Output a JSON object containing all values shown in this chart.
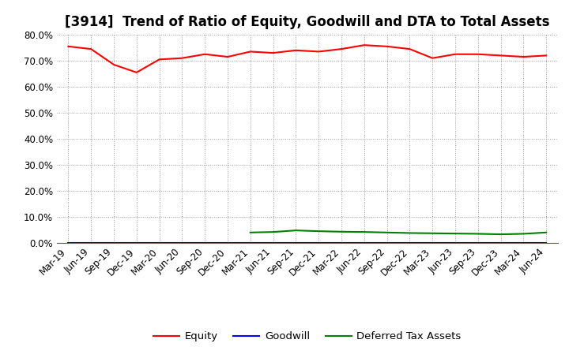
{
  "title": "[3914]  Trend of Ratio of Equity, Goodwill and DTA to Total Assets",
  "x_labels": [
    "Mar-19",
    "Jun-19",
    "Sep-19",
    "Dec-19",
    "Mar-20",
    "Jun-20",
    "Sep-20",
    "Dec-20",
    "Mar-21",
    "Jun-21",
    "Sep-21",
    "Dec-21",
    "Mar-22",
    "Jun-22",
    "Sep-22",
    "Dec-22",
    "Mar-23",
    "Jun-23",
    "Sep-23",
    "Dec-23",
    "Mar-24",
    "Jun-24"
  ],
  "equity": [
    75.5,
    74.5,
    68.5,
    65.5,
    70.5,
    71.0,
    72.5,
    71.5,
    73.5,
    73.0,
    74.0,
    73.5,
    74.5,
    76.0,
    75.5,
    74.5,
    71.0,
    72.5,
    72.5,
    72.0,
    71.5,
    72.0
  ],
  "goodwill": [
    0.0,
    0.0,
    0.0,
    0.0,
    0.0,
    0.0,
    0.0,
    0.0,
    0.0,
    0.0,
    0.0,
    0.0,
    0.0,
    0.0,
    0.0,
    0.0,
    0.0,
    0.0,
    0.0,
    0.0,
    0.0,
    0.0
  ],
  "dta": [
    null,
    null,
    null,
    null,
    null,
    null,
    null,
    null,
    4.0,
    4.2,
    4.8,
    4.5,
    4.3,
    4.2,
    4.0,
    3.8,
    3.7,
    3.6,
    3.5,
    3.3,
    3.5,
    4.0
  ],
  "equity_color": "#ff0000",
  "goodwill_color": "#0000ff",
  "dta_color": "#008000",
  "ylim": [
    0,
    80
  ],
  "yticks": [
    0,
    10,
    20,
    30,
    40,
    50,
    60,
    70,
    80
  ],
  "background_color": "#ffffff",
  "grid_color": "#999999",
  "title_fontsize": 12,
  "tick_fontsize": 8.5,
  "legend_fontsize": 9.5
}
